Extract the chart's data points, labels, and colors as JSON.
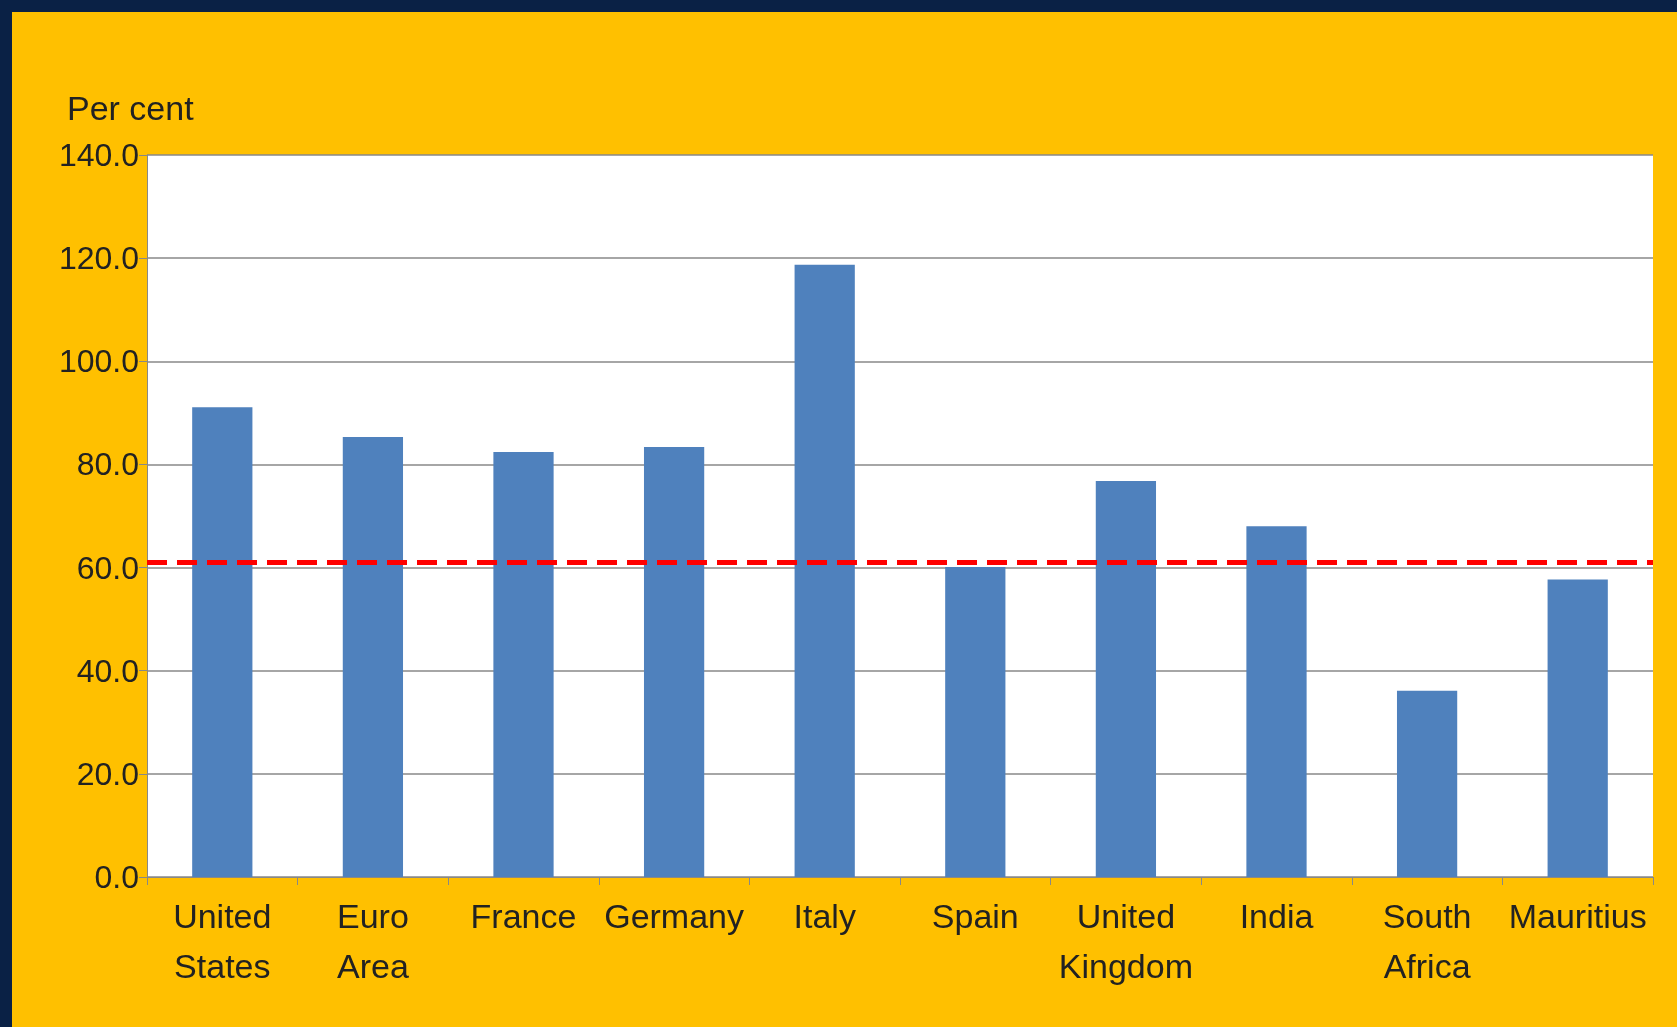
{
  "chart_data": {
    "type": "bar",
    "ylabel": "Per cent",
    "categories": [
      "United States",
      "Euro Area",
      "France",
      "Germany",
      "Italy",
      "Spain",
      "United Kingdom",
      "India",
      "South Africa",
      "Mauritius"
    ],
    "values": [
      91.1,
      85.3,
      82.4,
      83.4,
      118.7,
      60.1,
      76.8,
      68.0,
      36.1,
      57.7
    ],
    "color": "#4f81bd",
    "ylim": [
      0,
      140
    ],
    "yticks": [
      {
        "value": 0,
        "label": "0.0"
      },
      {
        "value": 20,
        "label": "20.0"
      },
      {
        "value": 40,
        "label": "40.0"
      },
      {
        "value": 60,
        "label": "60.0"
      },
      {
        "value": 80,
        "label": "80.0"
      },
      {
        "value": 100,
        "label": "100.0"
      },
      {
        "value": 120,
        "label": "120.0"
      },
      {
        "value": 140,
        "label": "140.0"
      }
    ],
    "grid": "y",
    "ref_lines": [
      {
        "axis": "y",
        "value": 61,
        "color": "#ff0000",
        "line_style": "dashed"
      }
    ]
  }
}
